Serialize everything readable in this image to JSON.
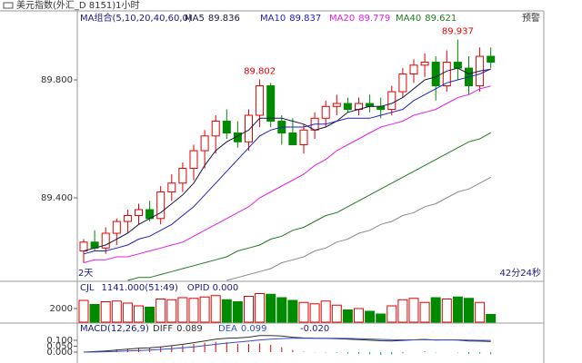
{
  "header": {
    "title": "美元指数(外汇_D 8151)1小时",
    "alert": "预警"
  },
  "chart_data": [
    {
      "type": "candlestick",
      "indicator_label": "MA组合(5,10,20,40,60,0)",
      "ohlc": {
        "open": [
          89.22,
          89.25,
          89.23,
          89.28,
          89.32,
          89.34,
          89.36,
          89.33,
          89.42,
          89.45,
          89.5,
          89.56,
          89.61,
          89.66,
          89.62,
          89.59,
          89.68,
          89.78,
          89.66,
          89.62,
          89.58,
          89.63,
          89.67,
          89.71,
          89.72,
          89.7,
          89.72,
          89.71,
          89.7,
          89.76,
          89.82,
          89.85,
          89.86,
          89.78,
          89.86,
          89.84,
          89.78,
          89.88
        ],
        "high": [
          89.26,
          89.29,
          89.3,
          89.33,
          89.36,
          89.38,
          89.39,
          89.44,
          89.48,
          89.52,
          89.58,
          89.63,
          89.68,
          89.7,
          89.66,
          89.7,
          89.802,
          89.79,
          89.68,
          89.67,
          89.65,
          89.69,
          89.73,
          89.75,
          89.74,
          89.74,
          89.75,
          89.74,
          89.78,
          89.84,
          89.87,
          89.89,
          89.88,
          89.9,
          89.937,
          89.88,
          89.91,
          89.91
        ],
        "low": [
          89.18,
          89.22,
          89.21,
          89.24,
          89.28,
          89.31,
          89.32,
          89.31,
          89.39,
          89.42,
          89.46,
          89.5,
          89.55,
          89.6,
          89.57,
          89.56,
          89.64,
          89.64,
          89.58,
          89.58,
          89.55,
          89.6,
          89.64,
          89.68,
          89.69,
          89.68,
          89.69,
          89.67,
          89.68,
          89.74,
          89.79,
          89.81,
          89.73,
          89.76,
          89.8,
          89.75,
          89.76,
          89.84
        ],
        "close": [
          89.25,
          89.23,
          89.28,
          89.32,
          89.34,
          89.36,
          89.33,
          89.42,
          89.45,
          89.5,
          89.56,
          89.61,
          89.66,
          89.62,
          89.59,
          89.68,
          89.78,
          89.66,
          89.62,
          89.58,
          89.63,
          89.67,
          89.71,
          89.72,
          89.7,
          89.72,
          89.71,
          89.7,
          89.76,
          89.82,
          89.85,
          89.86,
          89.78,
          89.86,
          89.84,
          89.78,
          89.88,
          89.86
        ]
      },
      "up_color": "#e00000",
      "down_color": "#008a00",
      "ylim": [
        89.117,
        90.034
      ],
      "yticks": [
        {
          "value": 89.8,
          "label": "89.800"
        },
        {
          "value": 89.4,
          "label": "89.400"
        }
      ],
      "series": [
        {
          "name": "MA5",
          "color": "#1a1a40",
          "values": [
            89.22,
            89.23,
            89.24,
            89.26,
            89.28,
            89.31,
            89.33,
            89.35,
            89.38,
            89.41,
            89.45,
            89.51,
            89.56,
            89.59,
            89.61,
            89.63,
            89.67,
            89.67,
            89.67,
            89.66,
            89.65,
            89.63,
            89.64,
            89.66,
            89.69,
            89.7,
            89.71,
            89.71,
            89.72,
            89.74,
            89.77,
            89.8,
            89.81,
            89.83,
            89.84,
            89.82,
            89.83,
            89.836
          ]
        },
        {
          "name": "MA10",
          "color": "#2020c0",
          "values": [
            89.21,
            89.22,
            89.22,
            89.23,
            89.24,
            89.26,
            89.27,
            89.29,
            89.31,
            89.34,
            89.37,
            89.41,
            89.45,
            89.49,
            89.53,
            89.57,
            89.61,
            89.63,
            89.64,
            89.64,
            89.64,
            89.65,
            89.65,
            89.66,
            89.67,
            89.67,
            89.67,
            89.68,
            89.69,
            89.7,
            89.73,
            89.75,
            89.77,
            89.79,
            89.8,
            89.81,
            89.82,
            89.837
          ]
        },
        {
          "name": "MA20",
          "color": "#e020e0",
          "values": [
            89.18,
            89.19,
            89.19,
            89.2,
            89.2,
            89.21,
            89.22,
            89.23,
            89.24,
            89.25,
            89.27,
            89.29,
            89.31,
            89.33,
            89.35,
            89.37,
            89.4,
            89.42,
            89.44,
            89.46,
            89.48,
            89.51,
            89.53,
            89.56,
            89.58,
            89.6,
            89.62,
            89.64,
            89.65,
            89.66,
            89.68,
            89.69,
            89.7,
            89.72,
            89.74,
            89.75,
            89.77,
            89.779
          ]
        },
        {
          "name": "MA40",
          "color": "#1f7a1f",
          "values": [
            null,
            null,
            null,
            null,
            89.12,
            89.13,
            89.13,
            89.14,
            89.15,
            89.16,
            89.17,
            89.18,
            89.19,
            89.2,
            89.22,
            89.23,
            89.24,
            89.26,
            89.27,
            89.29,
            89.3,
            89.32,
            89.34,
            89.35,
            89.37,
            89.39,
            89.41,
            89.43,
            89.45,
            89.47,
            89.49,
            89.51,
            89.53,
            89.55,
            89.57,
            89.59,
            89.6,
            89.621
          ]
        },
        {
          "color": "#8a8a8a",
          "values": [
            null,
            null,
            null,
            null,
            null,
            null,
            null,
            null,
            null,
            null,
            null,
            null,
            null,
            89.12,
            89.13,
            89.14,
            89.15,
            89.16,
            89.18,
            89.19,
            89.2,
            89.22,
            89.23,
            89.25,
            89.26,
            89.28,
            89.29,
            89.31,
            89.32,
            89.34,
            89.35,
            89.37,
            89.38,
            89.4,
            89.42,
            89.43,
            89.45,
            89.47
          ]
        }
      ],
      "period_label": "2天",
      "countdown": "42分24秒"
    },
    {
      "type": "bar",
      "name": "CJL",
      "value_label": "1141.000",
      "time": "(51:49)",
      "extra": "OPID 0.000",
      "values": [
        3200,
        2600,
        3000,
        3100,
        2800,
        2400,
        2200,
        3400,
        3300,
        3600,
        3500,
        3700,
        3900,
        3300,
        3000,
        3800,
        4200,
        4100,
        3600,
        3200,
        2900,
        2700,
        3100,
        2500,
        1800,
        2000,
        1600,
        1200,
        2400,
        3300,
        3500,
        2900,
        3600,
        3400,
        3700,
        3500,
        2900,
        1141
      ],
      "ylim": [
        0,
        5733
      ],
      "yticks": [
        2000
      ]
    },
    {
      "type": "macd",
      "title": "MACD(12,26,9)",
      "series": [
        {
          "name": "DIFF",
          "color": "#303030",
          "values": [
            0.0,
            0.005,
            0.01,
            0.018,
            0.025,
            0.032,
            0.036,
            0.045,
            0.055,
            0.066,
            0.08,
            0.095,
            0.11,
            0.118,
            0.12,
            0.127,
            0.14,
            0.141,
            0.136,
            0.126,
            0.12,
            0.117,
            0.116,
            0.114,
            0.11,
            0.106,
            0.101,
            0.096,
            0.095,
            0.099,
            0.104,
            0.108,
            0.102,
            0.104,
            0.102,
            0.094,
            0.093,
            0.089
          ]
        },
        {
          "name": "DEA",
          "color": "#3050c0",
          "values": [
            0.0,
            0.001,
            0.003,
            0.006,
            0.01,
            0.014,
            0.018,
            0.023,
            0.029,
            0.036,
            0.045,
            0.055,
            0.066,
            0.076,
            0.085,
            0.093,
            0.103,
            0.11,
            0.115,
            0.117,
            0.118,
            0.118,
            0.118,
            0.117,
            0.116,
            0.114,
            0.111,
            0.108,
            0.105,
            0.104,
            0.104,
            0.105,
            0.104,
            0.104,
            0.104,
            0.102,
            0.1,
            0.099
          ]
        }
      ],
      "histogram": {
        "up_color": "#e00000",
        "down_color": "#00a0a0",
        "values": [
          0,
          0.008,
          0.014,
          0.024,
          0.03,
          0.036,
          0.036,
          0.044,
          0.052,
          0.06,
          0.07,
          0.08,
          0.088,
          0.084,
          0.07,
          0.068,
          0.074,
          0.062,
          0.042,
          0.018,
          0.004,
          -0.002,
          -0.004,
          -0.006,
          -0.012,
          -0.016,
          -0.02,
          -0.024,
          -0.02,
          -0.01,
          0,
          0.006,
          -0.004,
          0,
          -0.004,
          -0.016,
          -0.014,
          -0.02
        ],
        "readout": {
          "value": -0.02,
          "label": "-0.020"
        }
      },
      "ylim": [
        -0.077,
        0.231
      ],
      "yticks": [
        {
          "value": 0.1,
          "label": "0.100"
        },
        {
          "value": 0.05,
          "label": "0.050"
        },
        {
          "value": 0,
          "label": "0.000"
        }
      ]
    }
  ]
}
